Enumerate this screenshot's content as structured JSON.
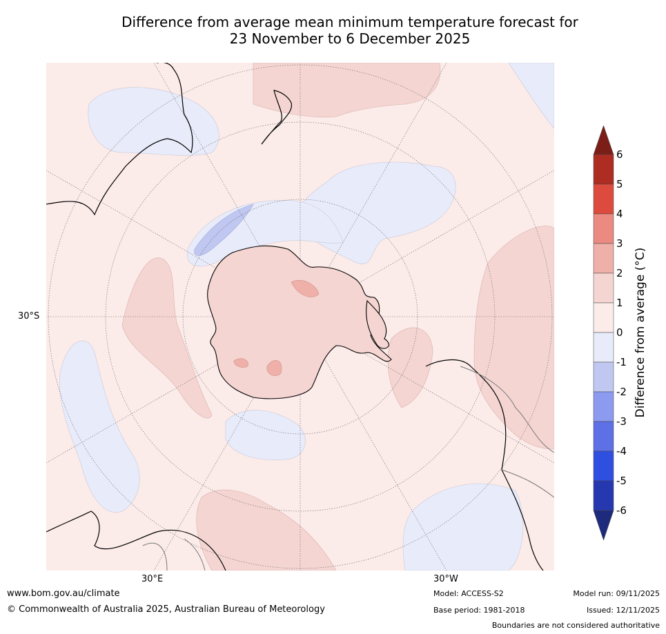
{
  "title": {
    "line1": "Difference from average mean minimum temperature forecast for",
    "line2": "23 November to 6 December 2025"
  },
  "map": {
    "projection": "south-polar-stereographic",
    "lat_labels": [
      "30°S"
    ],
    "lon_labels": [
      "30°E",
      "30°W"
    ]
  },
  "colorbar": {
    "label": "Difference from average (",
    "label_unit": "°C)",
    "ticks": [
      "6",
      "5",
      "4",
      "3",
      "2",
      "1",
      "0",
      "-1",
      "-2",
      "-3",
      "-4",
      "-5",
      "-6"
    ],
    "colors": [
      "#7a1e17",
      "#ad2d22",
      "#dd4b3e",
      "#ea8a80",
      "#eeb0a8",
      "#f4d5d2",
      "#fbebe9",
      "#e8ebf9",
      "#c0c7f1",
      "#8c9af0",
      "#5d70e6",
      "#2f4fe0",
      "#2638b0",
      "#1e2a7c"
    ]
  },
  "footer": {
    "website": "www.bom.gov.au/climate",
    "copyright": "© Commonwealth of Australia 2025, Australian Bureau of Meteorology",
    "model": "Model: ACCESS-S2",
    "base_period": "Base period: 1981-2018",
    "model_run": "Model run: 09/11/2025",
    "issued": "Issued: 12/11/2025",
    "disclaimer": "Boundaries are not considered authoritative"
  }
}
